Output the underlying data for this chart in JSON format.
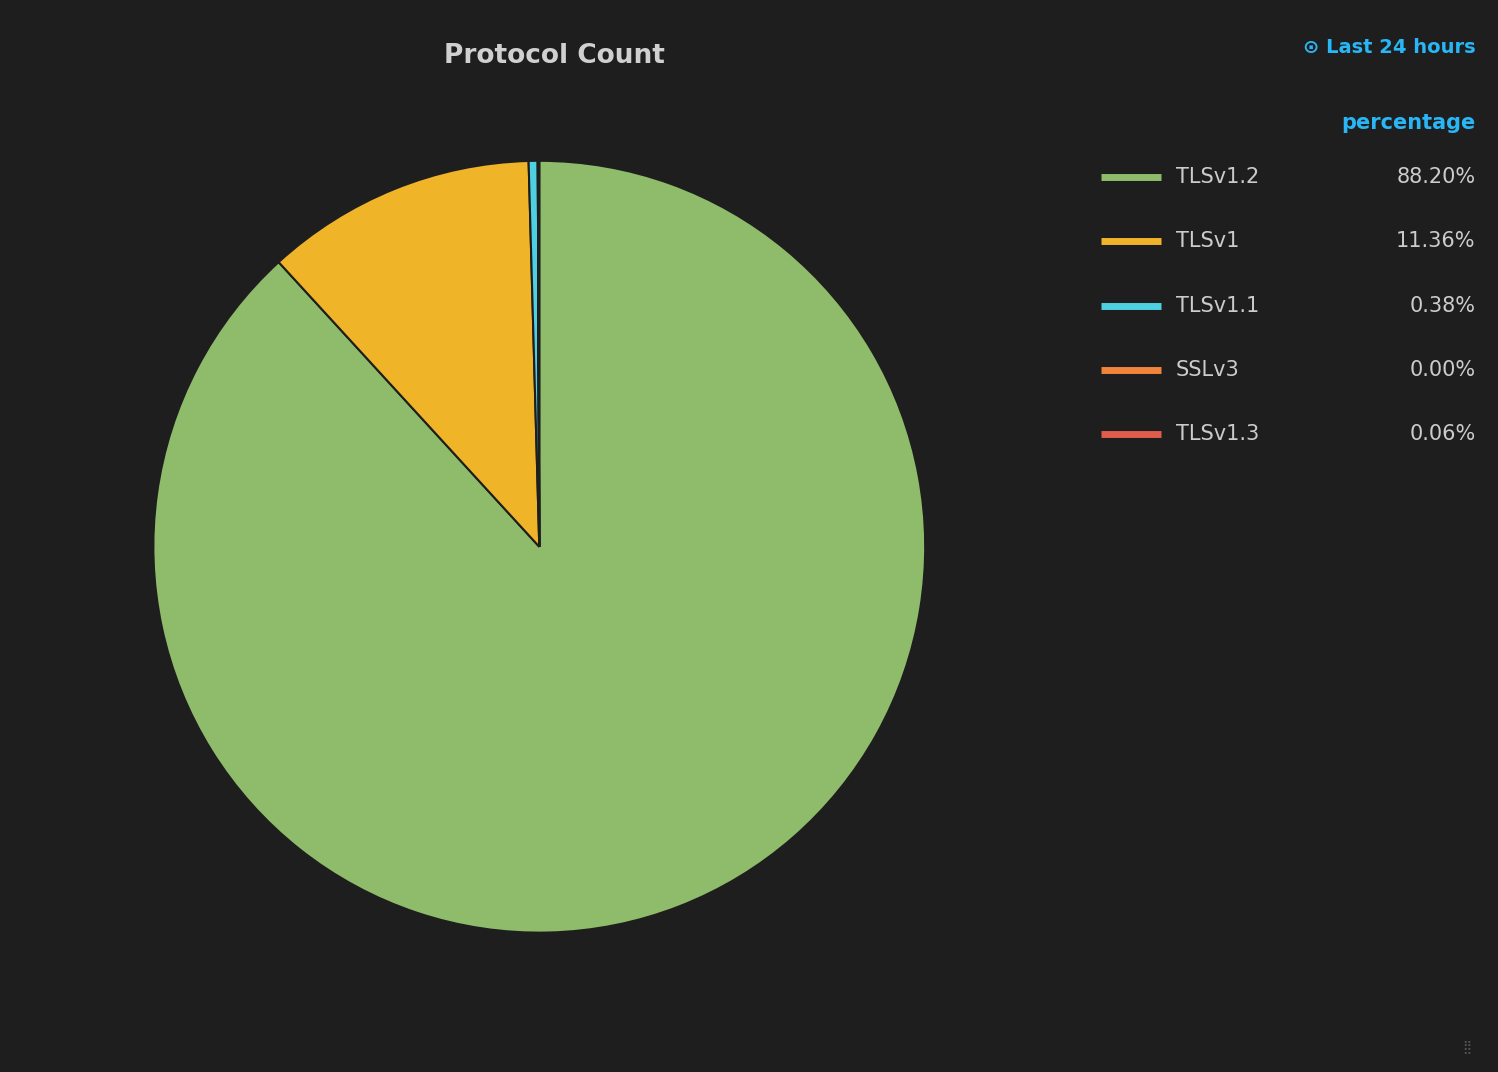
{
  "title": "Protocol Count",
  "background_color": "#1e1e1e",
  "title_color": "#d0d0d0",
  "labels": [
    "TLSv1.2",
    "TLSv1",
    "TLSv1.1",
    "SSLv3",
    "TLSv1.3"
  ],
  "values": [
    88.2,
    11.36,
    0.38,
    0.0,
    0.06
  ],
  "colors": [
    "#8fbc6a",
    "#f0b429",
    "#4dd0e1",
    "#f0843a",
    "#e05c4b"
  ],
  "percentages": [
    "88.20%",
    "11.36%",
    "0.38%",
    "0.00%",
    "0.06%"
  ],
  "legend_header": "percentage",
  "legend_header_color": "#29b6f6",
  "last24_text": "⊙ Last 24 hours",
  "last24_color": "#29b6f6",
  "pie_edge_color": "#1e1e1e",
  "pie_linewidth": 1.5,
  "startangle": 90,
  "title_fontsize": 19,
  "legend_fontsize": 15,
  "legend_label_color": "#cccccc",
  "legend_pct_color": "#cccccc",
  "last24_fontsize": 14
}
